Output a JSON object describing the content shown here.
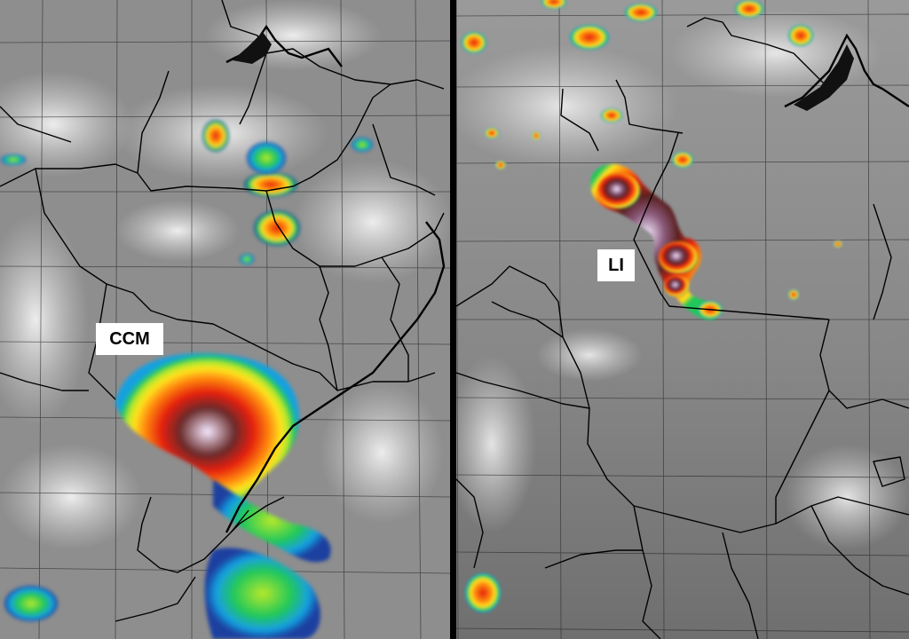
{
  "panels": [
    {
      "id": "left",
      "label": "CCM"
    },
    {
      "id": "right",
      "label": "LI"
    }
  ],
  "colors": {
    "background_gray": "#8e8e8e",
    "cloud_white": "#e6e6e6",
    "divider": "#000000",
    "boundary": "#000000",
    "grid": "#2a2a2a",
    "enhancement_scale": [
      "#1a3fa0",
      "#18a0e0",
      "#22c85a",
      "#b6e82a",
      "#ffe21e",
      "#ff8a10",
      "#e52010",
      "#5a2020",
      "#f0e0ff"
    ]
  }
}
